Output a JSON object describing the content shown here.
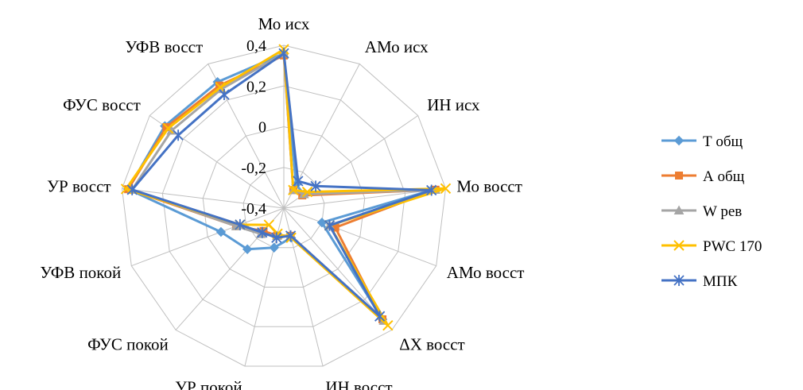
{
  "chart_data": {
    "type": "radar",
    "categories": [
      "Мо исх",
      "АМо исх",
      "ИН исх",
      "Мо восст",
      "АМо восст",
      "ΔХ восст",
      "ИН восст",
      "УР покой",
      "ФУС покой",
      "УФВ покой",
      "УР восст",
      "ФУС восст",
      "УФВ восст"
    ],
    "rlim": [
      -0.4,
      0.4
    ],
    "ticks": [
      -0.4,
      -0.2,
      0,
      0.2,
      0.4
    ],
    "tick_labels": [
      "-0,4",
      "-0,2",
      "0",
      "0,2",
      "0,4"
    ],
    "grid": true,
    "legend_position": "right",
    "series": [
      {
        "name": "Т общ",
        "color": "#5b9bd5",
        "marker": "diamond",
        "values": [
          0.36,
          -0.27,
          -0.28,
          0.33,
          -0.2,
          0.33,
          -0.25,
          -0.2,
          -0.13,
          -0.07,
          0.37,
          0.31,
          0.3
        ]
      },
      {
        "name": "А общ",
        "color": "#ed7d31",
        "marker": "square",
        "values": [
          0.35,
          -0.3,
          -0.29,
          0.35,
          -0.13,
          0.33,
          -0.26,
          -0.26,
          -0.25,
          -0.15,
          0.37,
          0.3,
          0.28
        ]
      },
      {
        "name": "W рев",
        "color": "#a5a5a5",
        "marker": "triangle",
        "values": [
          0.36,
          -0.3,
          -0.28,
          0.35,
          -0.16,
          0.34,
          -0.26,
          -0.26,
          -0.23,
          -0.15,
          0.35,
          0.27,
          0.26
        ]
      },
      {
        "name": "PWC 170",
        "color": "#ffc000",
        "marker": "x",
        "values": [
          0.38,
          -0.3,
          -0.26,
          0.4,
          -0.16,
          0.37,
          -0.25,
          -0.27,
          -0.29,
          -0.17,
          0.38,
          0.29,
          0.27
        ]
      },
      {
        "name": "МПК",
        "color": "#4472c4",
        "marker": "star",
        "values": [
          0.36,
          -0.25,
          -0.21,
          0.33,
          -0.16,
          0.31,
          -0.26,
          -0.25,
          -0.24,
          -0.17,
          0.35,
          0.23,
          0.23
        ]
      }
    ]
  }
}
